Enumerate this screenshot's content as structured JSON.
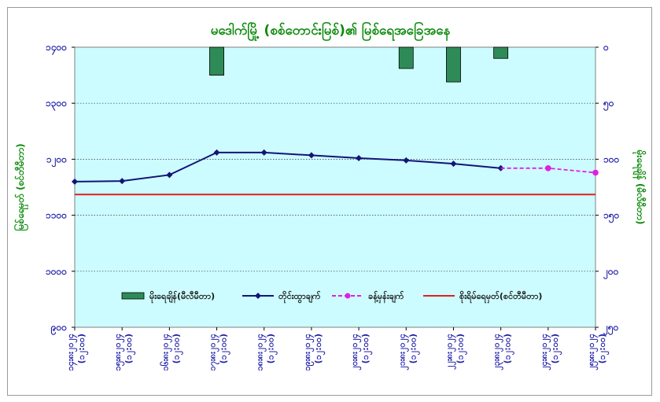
{
  "chart_data": {
    "type": "bar+line",
    "title": "မဒေါက်မြို့ (စစ်တောင်းမြစ်)၏ မြစ်ရေအခြေအနေ",
    "categories": [
      "၁၄း၈း၂၀၂၄ (၁၂:၀၀)",
      "၁၅း၈း၂၀၂၄ (၁၂:၀၀)",
      "၁၆း၈း၂၀၂၄ (၁၂:၀၀)",
      "၁၇း၈း၂၀၂၄ (၁၂:၀၀)",
      "၁၈း၈း၂၀၂၄ (၁၂:၀၀)",
      "၁၉း၈း၂၀၂၄ (၁၂:၀၀)",
      "၂၀း၈း၂၀၂၄ (၁၂:၀၀)",
      "၂၁း၈း၂၀၂၄ (၁၂:၀၀)",
      "၂၂း၈း၂၀၂၄ (၁၂:၀၀)",
      "၂၃း၈း၂၀၂၄ (၁၂:၀၀)",
      "၂၄း၈း၂၀၂၄ (၁၂:၀၀)",
      "၂၅း၈း၂၀၂၄ (၁၂:၀၀)"
    ],
    "left_axis": {
      "label": "မြစ်ရေမှတ် (စင်တီမီတာ)",
      "min": 900,
      "max": 1400,
      "ticks": [
        900,
        1000,
        1100,
        1200,
        1300,
        1400
      ],
      "tick_labels": [
        "၉၀၀",
        "၁၀၀၀",
        "၁၁၀၀",
        "၁၂၀၀",
        "၁၃၀၀",
        "၁၄၀၀"
      ]
    },
    "right_axis": {
      "label": "မိုးရေချိန် (မီလီမီတာ)",
      "min": 0,
      "max": 250,
      "inverted": true,
      "ticks": [
        0,
        50,
        100,
        150,
        200,
        250
      ],
      "tick_labels": [
        "၀",
        "၅၀",
        "၁၀၀",
        "၁၅၀",
        "၂၀၀",
        "၂၅၀"
      ]
    },
    "series": [
      {
        "name": "မိုးရေချိန်(မီလီမီတာ)",
        "type": "bar",
        "axis": "right",
        "color": "#2e8b57",
        "values": [
          0,
          0,
          0,
          25,
          0,
          0,
          0,
          19,
          31,
          10,
          0,
          0
        ]
      },
      {
        "name": "တိုင်းထွာချက်",
        "type": "line",
        "axis": "left",
        "color": "#141478",
        "values": [
          1160,
          1161,
          1172,
          1212,
          1212,
          1207,
          1202,
          1198,
          1192,
          1184,
          null,
          null
        ]
      },
      {
        "name": "ခန့်မှန်းချက်",
        "type": "line-dashed",
        "axis": "left",
        "color": "#e020e0",
        "values": [
          null,
          null,
          null,
          null,
          null,
          null,
          null,
          null,
          null,
          null,
          1184,
          1176
        ]
      },
      {
        "name": "စိုးရိမ်ရေမှတ်(စင်တီမီတာ)",
        "type": "hline",
        "axis": "left",
        "color": "#e02020",
        "value": 1137
      }
    ],
    "grid": "horizontal dotted",
    "legend_position": "bottom-inside",
    "background": "#ccfcff"
  }
}
